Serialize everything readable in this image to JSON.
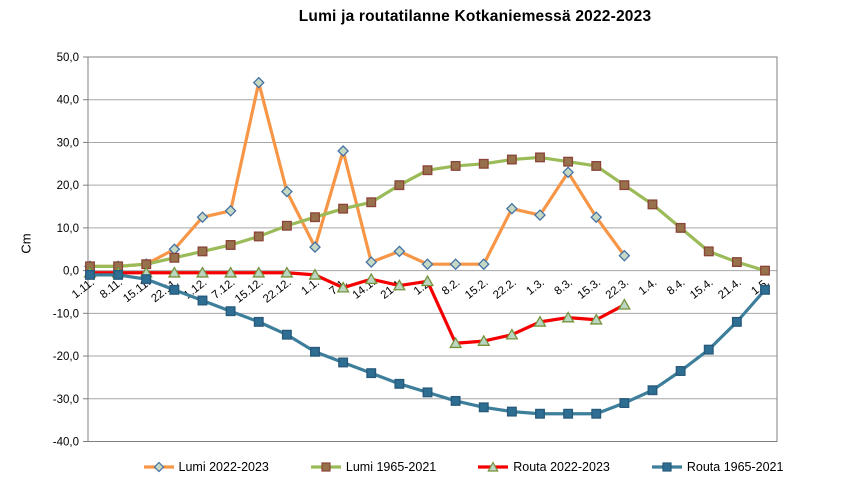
{
  "chart_data": {
    "type": "line",
    "title": "Lumi ja routatilanne Kotkaniemessä 2022-2023",
    "ylabel": "Cm",
    "xlabel": "",
    "ylim": [
      -40,
      50
    ],
    "ytick_step": 10,
    "ytick_labels": [
      "50,0",
      "40,0",
      "30,0",
      "20,0",
      "10,0",
      "0,0",
      "-10,0",
      "-20,0",
      "-30,0",
      "-40,0"
    ],
    "grid": true,
    "legend_position": "bottom",
    "colors": {
      "gridline": "#A6A6A6",
      "plot_border": "#808080",
      "text": "#000000"
    },
    "categories": [
      "1.11.",
      "8.11.",
      "15.11.",
      "22.11.",
      "1.12.",
      "7.12.",
      "15.12.",
      "22.12.",
      "1.1.",
      "7.1.",
      "14.1.",
      "21.1.",
      "1.2.",
      "8.2.",
      "15.2.",
      "22.2.",
      "1.3.",
      "8.3.",
      "15.3.",
      "22.3.",
      "1.4.",
      "8.4.",
      "15.4.",
      "21.4.",
      "1.5."
    ],
    "series": [
      {
        "name": "Lumi 2022-2023",
        "marker": "diamond",
        "line_color": "#F79646",
        "marker_fill": "#C5D9C4",
        "marker_stroke": "#4472A4",
        "values": [
          1,
          1,
          1.5,
          5,
          12.5,
          14,
          44,
          18.5,
          5.5,
          28,
          2,
          4.5,
          1.5,
          1.5,
          1.5,
          14.5,
          13,
          23,
          12.5,
          3.5,
          null,
          null,
          null,
          null,
          null
        ]
      },
      {
        "name": "Lumi 1965-2021",
        "marker": "square",
        "line_color": "#9BBB59",
        "marker_fill": "#96714B",
        "marker_stroke": "#8A4438",
        "values": [
          1,
          1,
          1.5,
          3,
          4.5,
          6,
          8,
          10.5,
          12.5,
          14.5,
          16,
          20,
          23.5,
          24.5,
          25,
          26,
          26.5,
          25.5,
          24.5,
          20,
          15.5,
          10,
          4.5,
          2,
          0
        ]
      },
      {
        "name": "Routa 2022-2023",
        "marker": "triangle",
        "line_color": "#F50000",
        "marker_fill": "#BCD6C4",
        "marker_stroke": "#76923C",
        "values": [
          -0.5,
          -0.5,
          -0.5,
          -0.5,
          -0.5,
          -0.5,
          -0.5,
          -0.5,
          -1,
          -4,
          -2,
          -3.5,
          -2.5,
          -17,
          -16.5,
          -15,
          -12,
          -11,
          -11.5,
          -8,
          null,
          null,
          null,
          null,
          null
        ]
      },
      {
        "name": "Routa 1965-2021",
        "marker": "square",
        "line_color": "#3D7E9B",
        "marker_fill": "#2E6E93",
        "marker_stroke": "#27597A",
        "values": [
          -1,
          -1,
          -2,
          -4.5,
          -7,
          -9.5,
          -12,
          -15,
          -19,
          -21.5,
          -24,
          -26.5,
          -28.5,
          -30.5,
          -32,
          -33,
          -33.5,
          -33.5,
          -33.5,
          -31,
          -28,
          -23.5,
          -18.5,
          -12,
          -4.5
        ]
      }
    ]
  }
}
